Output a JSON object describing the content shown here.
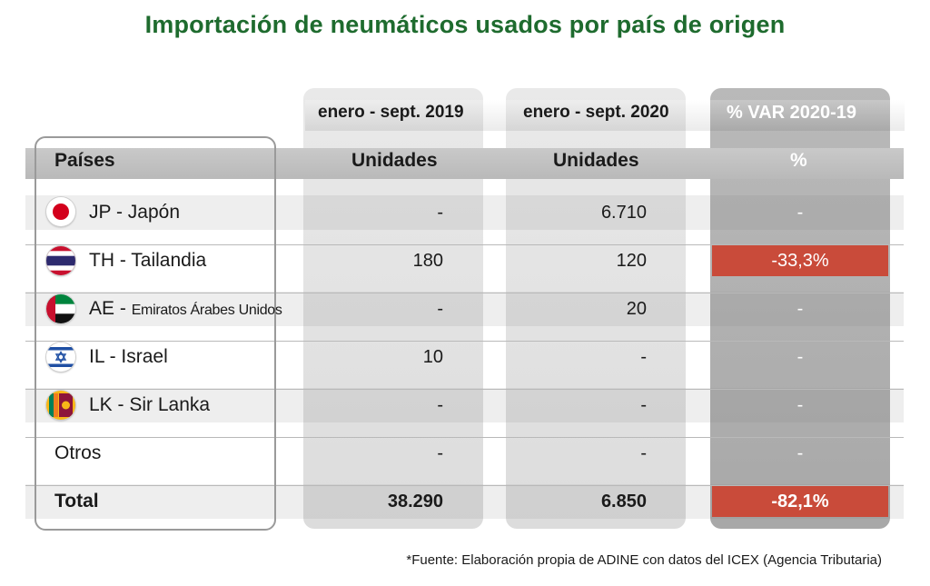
{
  "title": "Importación de neumáticos usados por país de origen",
  "columns": {
    "period_2019": "enero - sept. 2019",
    "period_2020": "enero - sept. 2020",
    "variation": "% VAR 2020-19"
  },
  "header": {
    "countries": "Países",
    "units_2019": "Unidades",
    "units_2020": "Unidades",
    "pct": "%"
  },
  "rows": [
    {
      "flag": "jp-flag-icon",
      "code_name": "JP - Japón",
      "units_2019": "-",
      "units_2020": "6.710",
      "var": "-",
      "highlight": false
    },
    {
      "flag": "th-flag-icon",
      "code_name": "TH - Tailandia",
      "units_2019": "180",
      "units_2020": "120",
      "var": "-33,3%",
      "highlight": true
    },
    {
      "flag": "ae-flag-icon",
      "code": "AE - ",
      "name": "Emiratos Árabes Unidos",
      "units_2019": "-",
      "units_2020": "20",
      "var": "-",
      "highlight": false
    },
    {
      "flag": "il-flag-icon",
      "code_name": "IL - Israel",
      "units_2019": "10",
      "units_2020": "-",
      "var": "-",
      "highlight": false
    },
    {
      "flag": "lk-flag-icon",
      "code_name": "LK - Sir Lanka",
      "units_2019": "-",
      "units_2020": "-",
      "var": "-",
      "highlight": false
    },
    {
      "code_name": "Otros",
      "units_2019": "-",
      "units_2020": "-",
      "var": "-",
      "highlight": false
    }
  ],
  "total": {
    "label": "Total",
    "units_2019": "38.290",
    "units_2020": "6.850",
    "var": "-82,1%"
  },
  "source": "*Fuente: Elaboración propia de ADINE con datos del ICEX (Agencia Tributaria)",
  "colors": {
    "title": "#1e6b2e",
    "highlight": "#c94b3a"
  },
  "chart_data": {
    "type": "table",
    "title": "Importación de neumáticos usados por país de origen",
    "columns": [
      "Países",
      "enero - sept. 2019 Unidades",
      "enero - sept. 2020 Unidades",
      "% VAR 2020-19"
    ],
    "rows": [
      [
        "JP - Japón",
        null,
        6710,
        null
      ],
      [
        "TH - Tailandia",
        180,
        120,
        -33.3
      ],
      [
        "AE - Emiratos Árabes Unidos",
        null,
        20,
        null
      ],
      [
        "IL - Israel",
        10,
        null,
        null
      ],
      [
        "LK - Sir Lanka",
        null,
        null,
        null
      ],
      [
        "Otros",
        null,
        null,
        null
      ],
      [
        "Total",
        38290,
        6850,
        -82.1
      ]
    ]
  }
}
